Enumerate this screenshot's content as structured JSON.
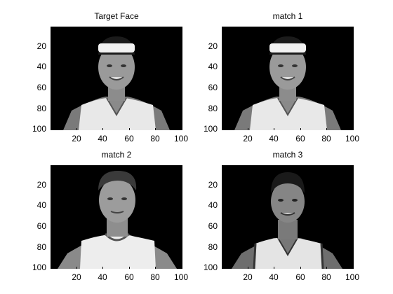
{
  "figure": {
    "panels": [
      {
        "title": "Target Face",
        "image": "basketball-player-headband-photo",
        "yticks": [
          "20",
          "40",
          "60",
          "80",
          "100"
        ],
        "xticks": [
          "20",
          "40",
          "60",
          "80",
          "100"
        ]
      },
      {
        "title": "match 1",
        "image": "basketball-player-headband-photo",
        "yticks": [
          "20",
          "40",
          "60",
          "80",
          "100"
        ],
        "xticks": [
          "20",
          "40",
          "60",
          "80",
          "100"
        ]
      },
      {
        "title": "match 2",
        "image": "basketball-player-short-hair-photo",
        "yticks": [
          "20",
          "40",
          "60",
          "80",
          "100"
        ],
        "xticks": [
          "20",
          "40",
          "60",
          "80",
          "100"
        ]
      },
      {
        "title": "match 3",
        "image": "basketball-player-short-hair-dark-photo",
        "yticks": [
          "20",
          "40",
          "60",
          "80",
          "100"
        ],
        "xticks": [
          "20",
          "40",
          "60",
          "80",
          "100"
        ]
      }
    ],
    "colors": {
      "background": "#ffffff",
      "image_background": "#000000",
      "skin_light": "#8a8a8a",
      "jersey": "#e6e6e6",
      "headband": "#f0f0f0"
    }
  }
}
